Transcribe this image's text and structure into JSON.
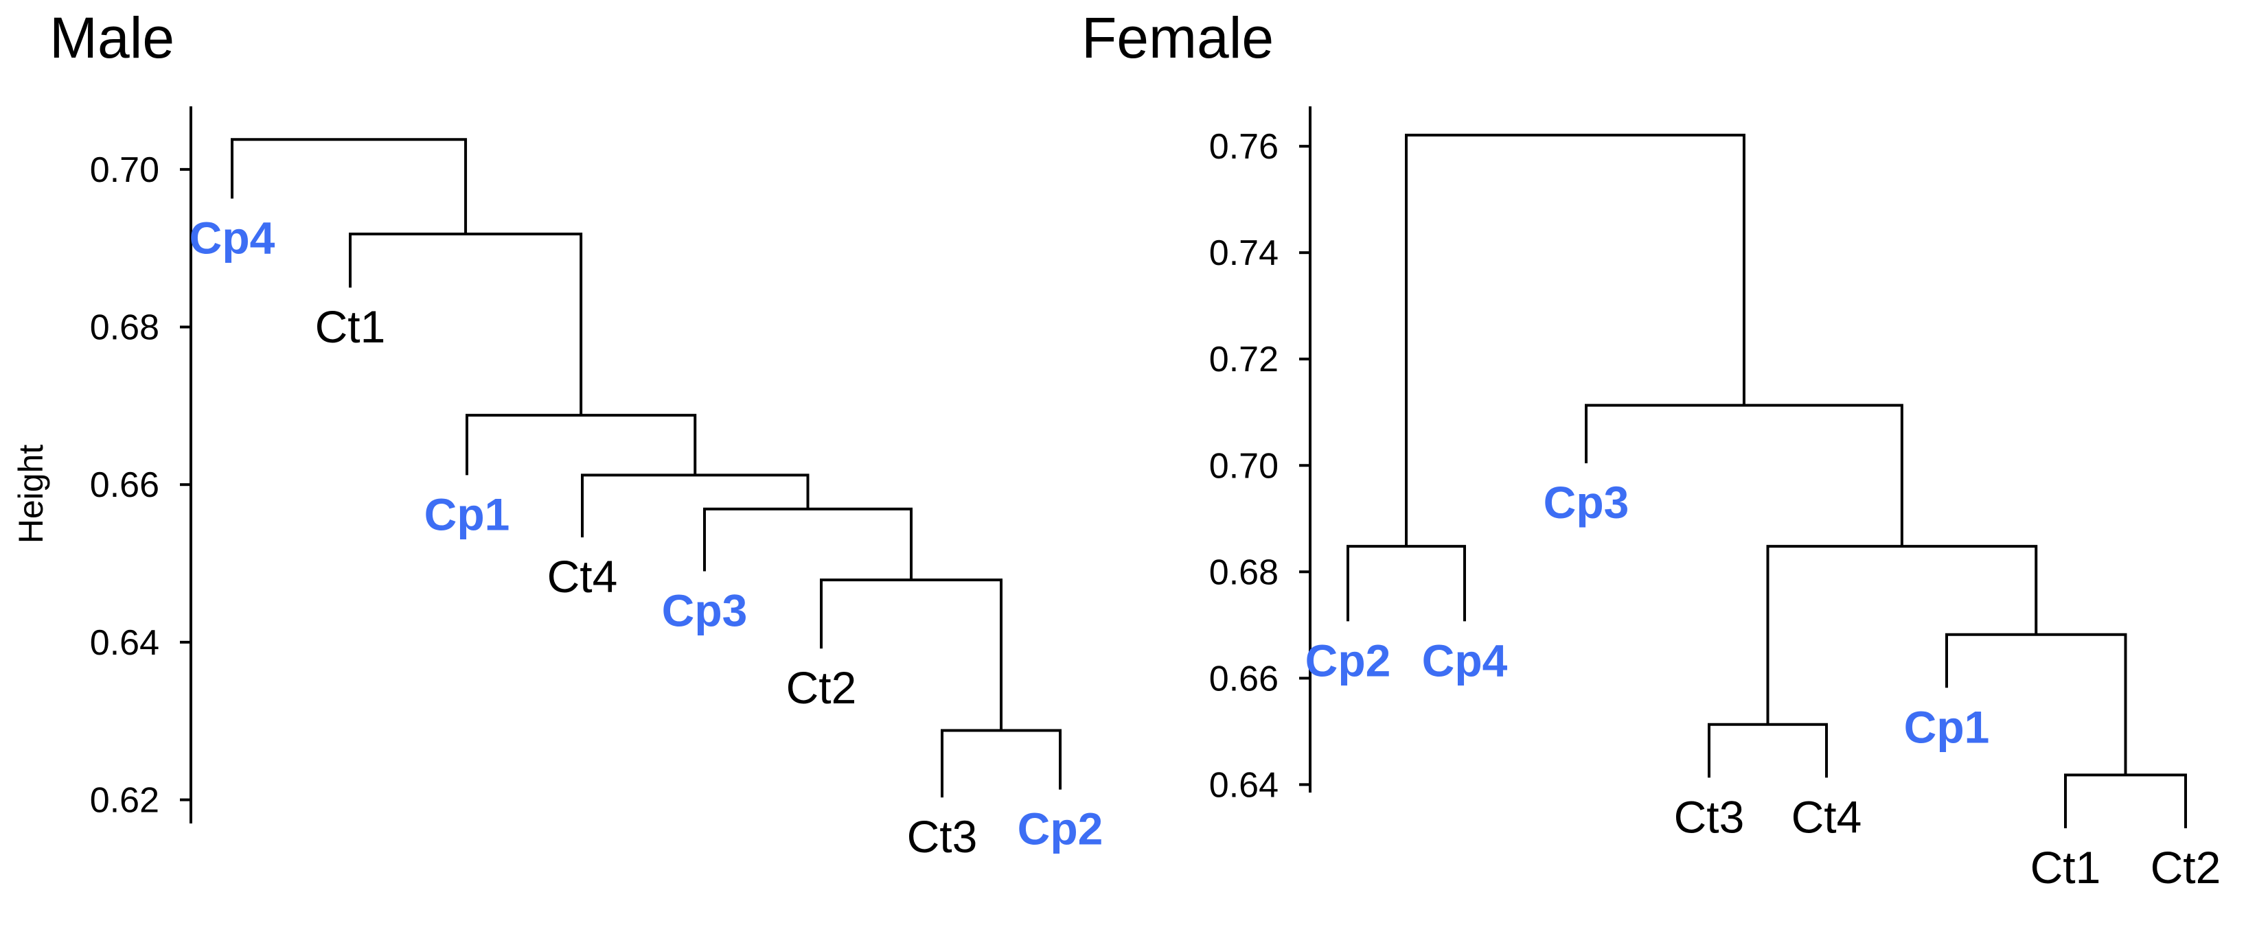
{
  "chart_data": [
    {
      "type": "dendrogram",
      "title": "Male",
      "ylabel": "Height",
      "ylim": [
        0.617,
        0.708
      ],
      "yticks": [
        0.62,
        0.64,
        0.66,
        0.68,
        0.7
      ],
      "ytick_labels": [
        "0.62",
        "0.64",
        "0.66",
        "0.68",
        "0.70"
      ],
      "leaves": [
        {
          "id": "L0",
          "label": "Cp4",
          "group": "Cp"
        },
        {
          "id": "L1",
          "label": "Ct1",
          "group": "Ct"
        },
        {
          "id": "L2",
          "label": "Cp1",
          "group": "Cp"
        },
        {
          "id": "L3",
          "label": "Ct4",
          "group": "Ct"
        },
        {
          "id": "L4",
          "label": "Cp3",
          "group": "Cp"
        },
        {
          "id": "L5",
          "label": "Ct2",
          "group": "Ct"
        },
        {
          "id": "L6",
          "label": "Ct3",
          "group": "Ct"
        },
        {
          "id": "L7",
          "label": "Cp2",
          "group": "Cp"
        }
      ],
      "merges": [
        {
          "id": "m1",
          "left": "L6",
          "right": "L7",
          "height": 0.6288
        },
        {
          "id": "m2",
          "left": "L5",
          "right": "m1",
          "height": 0.6479
        },
        {
          "id": "m3",
          "left": "L4",
          "right": "m2",
          "height": 0.6569
        },
        {
          "id": "m4",
          "left": "L3",
          "right": "m3",
          "height": 0.6612
        },
        {
          "id": "m5",
          "left": "L2",
          "right": "m4",
          "height": 0.6688
        },
        {
          "id": "m6",
          "left": "L1",
          "right": "m5",
          "height": 0.6918
        },
        {
          "id": "m7",
          "left": "L0",
          "right": "m6",
          "height": 0.7038
        }
      ],
      "leaf_heights": {
        "L0": 0.6963,
        "L1": 0.685,
        "L2": 0.6612,
        "L3": 0.6533,
        "L4": 0.649,
        "L5": 0.6392,
        "L6": 0.6203,
        "L7": 0.6213
      }
    },
    {
      "type": "dendrogram",
      "title": "Female",
      "ylabel": "",
      "ylim": [
        0.6385,
        0.7675
      ],
      "yticks": [
        0.64,
        0.66,
        0.68,
        0.7,
        0.72,
        0.74,
        0.76
      ],
      "ytick_labels": [
        "0.64",
        "0.66",
        "0.68",
        "0.70",
        "0.72",
        "0.74",
        "0.76"
      ],
      "leaves": [
        {
          "id": "F0",
          "label": "Cp2",
          "group": "Cp"
        },
        {
          "id": "F1",
          "label": "Cp4",
          "group": "Cp"
        },
        {
          "id": "F2",
          "label": "Cp3",
          "group": "Cp"
        },
        {
          "id": "F3",
          "label": "Ct3",
          "group": "Ct"
        },
        {
          "id": "F4",
          "label": "Ct4",
          "group": "Ct"
        },
        {
          "id": "F5",
          "label": "Cp1",
          "group": "Cp"
        },
        {
          "id": "F6",
          "label": "Ct1",
          "group": "Ct"
        },
        {
          "id": "F7",
          "label": "Ct2",
          "group": "Ct"
        }
      ],
      "merges": [
        {
          "id": "n1",
          "left": "F0",
          "right": "F1",
          "height": 0.6848
        },
        {
          "id": "n2",
          "left": "F3",
          "right": "F4",
          "height": 0.6513
        },
        {
          "id": "n3",
          "left": "F6",
          "right": "F7",
          "height": 0.6418
        },
        {
          "id": "n4",
          "left": "F5",
          "right": "n3",
          "height": 0.6682
        },
        {
          "id": "n5",
          "left": "n2",
          "right": "n4",
          "height": 0.6848
        },
        {
          "id": "n6",
          "left": "F2",
          "right": "n5",
          "height": 0.7113
        },
        {
          "id": "n7",
          "left": "n1",
          "right": "n6",
          "height": 0.7621
        }
      ],
      "leaf_heights": {
        "F0": 0.6707,
        "F1": 0.6707,
        "F2": 0.7004,
        "F3": 0.6413,
        "F4": 0.6413,
        "F5": 0.6582,
        "F6": 0.6318,
        "F7": 0.6318
      }
    }
  ],
  "colors": {
    "Cp": "#3d6ef4",
    "Ct": "#000000",
    "line": "#000000"
  }
}
